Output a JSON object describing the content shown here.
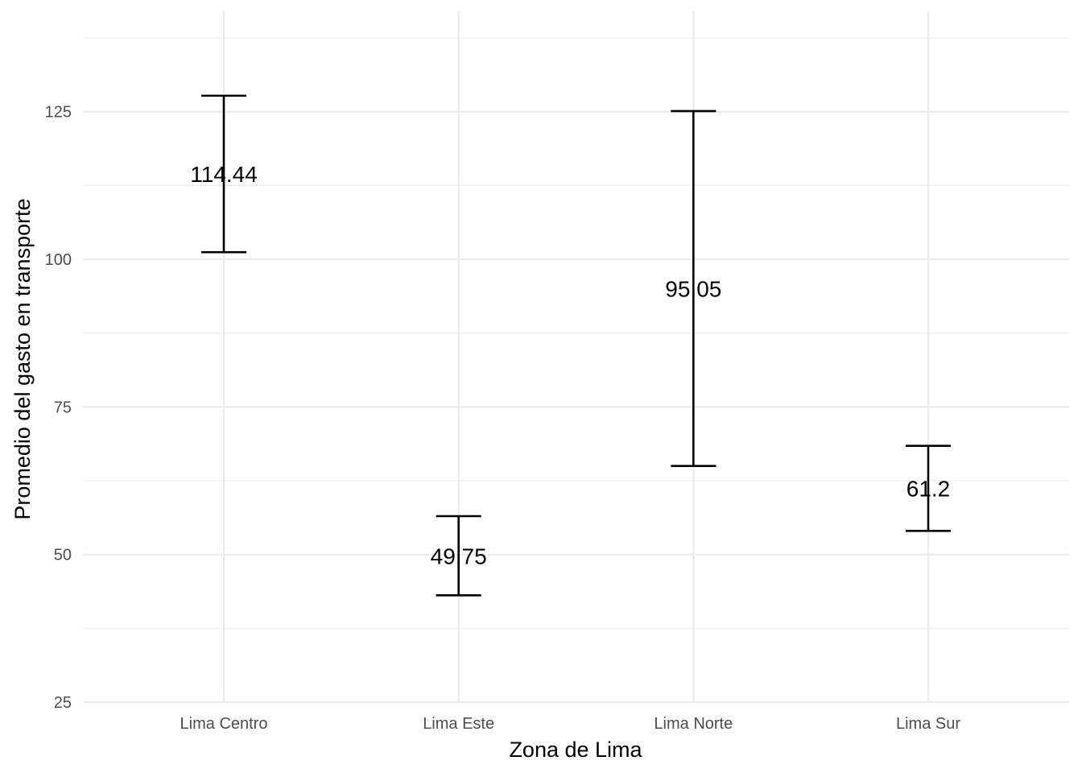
{
  "chart_data": {
    "type": "errorbar",
    "xlabel": "Zona de Lima",
    "ylabel": "Promedio del gasto en transporte",
    "categories": [
      "Lima Centro",
      "Lima Este",
      "Lima Norte",
      "Lima Sur"
    ],
    "means": [
      114.44,
      49.75,
      95.05,
      61.2
    ],
    "mean_labels": [
      "114.44",
      "49.75",
      "95.05",
      "61.2"
    ],
    "lower": [
      101.2,
      43.1,
      65.0,
      54.0
    ],
    "upper": [
      127.7,
      56.5,
      125.1,
      68.4
    ],
    "ylim": [
      25,
      142
    ],
    "yticks": [
      25,
      50,
      75,
      100,
      125
    ],
    "yticklabels": [
      "25",
      "50",
      "75",
      "100",
      "125"
    ],
    "grid": true,
    "legend": "none",
    "colors": {
      "bar": "#000000",
      "grid": "#ebebeb",
      "tick_text": "#4d4d4d"
    }
  }
}
